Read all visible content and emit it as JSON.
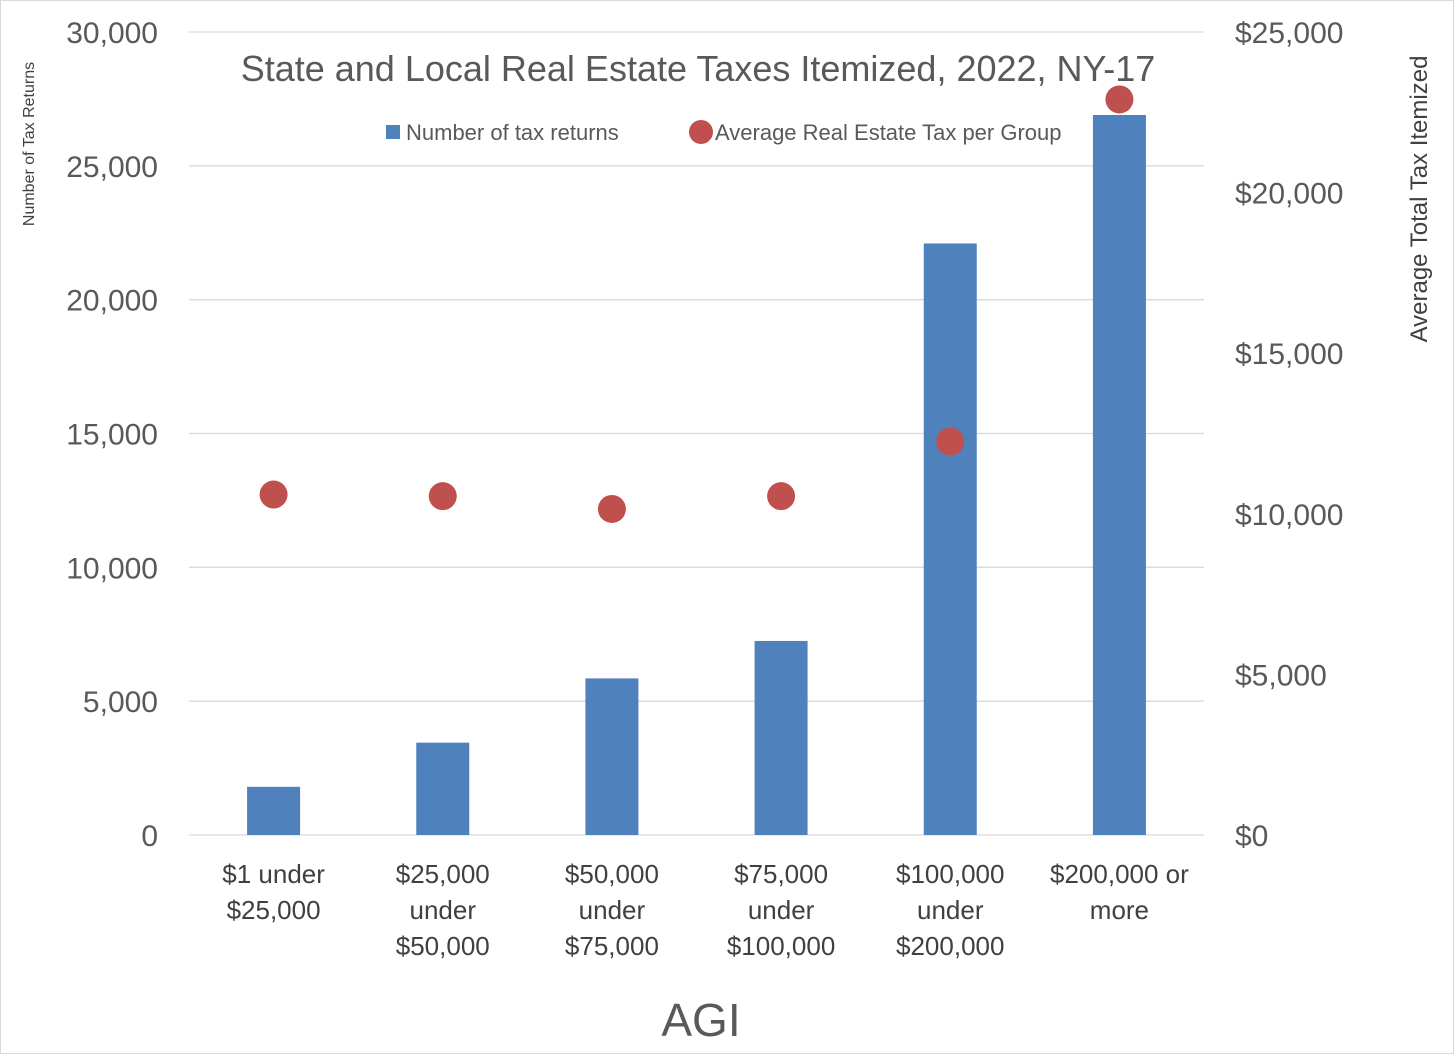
{
  "chart_data": {
    "type": "bar",
    "title": "State and Local Real Estate Taxes Itemized, 2022, NY-17",
    "xlabel": "AGI",
    "ylabel": "Number of Tax Returns",
    "ylabel_right": "Average Total Tax Itemized",
    "categories": [
      [
        "$1 under",
        "$25,000"
      ],
      [
        "$25,000",
        "under",
        "$50,000"
      ],
      [
        "$50,000",
        "under",
        "$75,000"
      ],
      [
        "$75,000",
        "under",
        "$100,000"
      ],
      [
        "$100,000",
        "under",
        "$200,000"
      ],
      [
        "$200,000 or",
        "more"
      ]
    ],
    "series": [
      {
        "name": "Number of tax returns",
        "type": "bar",
        "axis": "left",
        "color": "#4f81bd",
        "values": [
          1800,
          3450,
          5850,
          7250,
          22100,
          26900
        ]
      },
      {
        "name": "Average Real Estate Tax per Group",
        "type": "scatter",
        "axis": "right",
        "color": "#c0504d",
        "values": [
          10600,
          10550,
          10150,
          10550,
          12250,
          22900
        ]
      }
    ],
    "ylim": [
      0,
      30000
    ],
    "ylim_right": [
      0,
      25000
    ],
    "yticks": [
      "0",
      "5,000",
      "10,000",
      "15,000",
      "20,000",
      "25,000",
      "30,000"
    ],
    "yticks_right": [
      "$0",
      "$5,000",
      "$10,000",
      "$15,000",
      "$20,000",
      "$25,000"
    ],
    "grid": true,
    "legend_position": "top-center"
  }
}
